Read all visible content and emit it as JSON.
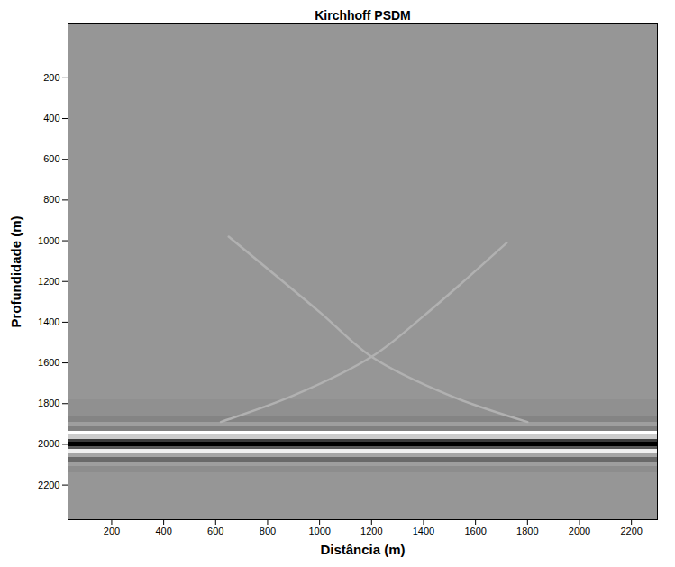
{
  "chart_data": {
    "type": "heatmap",
    "title": "Kirchhoff PSDM",
    "x_label": "Distância (m)",
    "y_label": "Profundidade (m)",
    "xlim": [
      32,
      2300
    ],
    "ylim": [
      -65,
      2370
    ],
    "xticks": [
      200,
      400,
      600,
      800,
      1000,
      1200,
      1400,
      1600,
      1800,
      2000,
      2200
    ],
    "yticks": [
      200,
      400,
      600,
      800,
      1000,
      1200,
      1400,
      1600,
      1800,
      2000,
      2200
    ],
    "color_range": [
      -1,
      0.7
    ],
    "cells": {
      "y_edges": [
        -65,
        1780,
        1860,
        1890,
        1915,
        1935,
        1955,
        1975,
        1990,
        2010,
        2025,
        2045,
        2065,
        2085,
        2110,
        2140,
        2370
      ],
      "values": [
        0,
        -0.04,
        -0.12,
        0.05,
        -0.15,
        0.7,
        0.35,
        -0.6,
        -1,
        -0.4,
        0.6,
        0.1,
        -0.3,
        0.05,
        -0.06,
        0
      ]
    },
    "events": [
      {
        "x": [
          650,
          1000,
          1200,
          1500,
          1800
        ],
        "y": [
          980,
          1350,
          1570,
          1760,
          1890
        ],
        "value": 0.18
      },
      {
        "x": [
          1720,
          1400,
          1200,
          900,
          620
        ],
        "y": [
          1010,
          1370,
          1570,
          1760,
          1890
        ],
        "value": 0.18
      }
    ]
  }
}
